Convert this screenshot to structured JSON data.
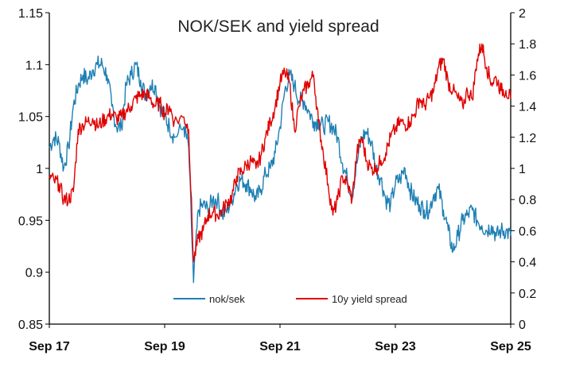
{
  "chart_data": {
    "type": "line",
    "title": "NOK/SEK and yield spread",
    "x_ticks": [
      "Sep 17",
      "Sep 19",
      "Sep 21",
      "Sep 23",
      "Sep 25"
    ],
    "x_range": [
      "Sep 17",
      "Sep 25"
    ],
    "y_left": {
      "min": 0.85,
      "max": 1.15,
      "ticks": [
        "0.85",
        "0.9",
        "0.95",
        "1",
        "1.05",
        "1.1",
        "1.15"
      ]
    },
    "y_right": {
      "min": 0,
      "max": 2,
      "ticks": [
        "0",
        "0.2",
        "0.4",
        "0.6",
        "0.8",
        "1",
        "1.2",
        "1.4",
        "1.6",
        "1.8",
        "2"
      ]
    },
    "grid": false,
    "legend_position": "bottom-center",
    "series": [
      {
        "name": "nok/sek",
        "axis": "left",
        "color": "#1F80B4",
        "points": [
          [
            "2017-09",
            1.02
          ],
          [
            "2017-10",
            1.03
          ],
          [
            "2017-11",
            1.025
          ],
          [
            "2017-12",
            1.0
          ],
          [
            "2018-01",
            1.02
          ],
          [
            "2018-02",
            1.06
          ],
          [
            "2018-03",
            1.08
          ],
          [
            "2018-04",
            1.09
          ],
          [
            "2018-05",
            1.085
          ],
          [
            "2018-06",
            1.095
          ],
          [
            "2018-07",
            1.1
          ],
          [
            "2018-08",
            1.1
          ],
          [
            "2018-09",
            1.09
          ],
          [
            "2018-10",
            1.06
          ],
          [
            "2018-11",
            1.04
          ],
          [
            "2018-12",
            1.04
          ],
          [
            "2019-01",
            1.08
          ],
          [
            "2019-02",
            1.09
          ],
          [
            "2019-03",
            1.1
          ],
          [
            "2019-04",
            1.085
          ],
          [
            "2019-05",
            1.07
          ],
          [
            "2019-06",
            1.08
          ],
          [
            "2019-07",
            1.08
          ],
          [
            "2019-08",
            1.06
          ],
          [
            "2019-09",
            1.05
          ],
          [
            "2019-10",
            1.04
          ],
          [
            "2019-11",
            1.03
          ],
          [
            "2020-01",
            1.04
          ],
          [
            "2020-02",
            1.02
          ],
          [
            "2020-03",
            0.89
          ],
          [
            "2020-04",
            0.96
          ],
          [
            "2020-05",
            0.965
          ],
          [
            "2020-06",
            0.96
          ],
          [
            "2020-07",
            0.97
          ],
          [
            "2020-08",
            0.97
          ],
          [
            "2020-09",
            0.955
          ],
          [
            "2020-10",
            0.96
          ],
          [
            "2020-11",
            0.97
          ],
          [
            "2020-12",
            0.985
          ],
          [
            "2021-01",
            0.99
          ],
          [
            "2021-02",
            0.985
          ],
          [
            "2021-03",
            0.98
          ],
          [
            "2021-04",
            0.97
          ],
          [
            "2021-05",
            0.98
          ],
          [
            "2021-06",
            0.995
          ],
          [
            "2021-07",
            1.0
          ],
          [
            "2021-08",
            1.015
          ],
          [
            "2021-09",
            1.04
          ],
          [
            "2021-10",
            1.075
          ],
          [
            "2021-11",
            1.09
          ],
          [
            "2021-12",
            1.08
          ],
          [
            "2022-01",
            1.065
          ],
          [
            "2022-02",
            1.065
          ],
          [
            "2022-03",
            1.055
          ],
          [
            "2022-04",
            1.045
          ],
          [
            "2022-05",
            1.045
          ],
          [
            "2022-06",
            1.04
          ],
          [
            "2022-07",
            1.045
          ],
          [
            "2022-08",
            1.04
          ],
          [
            "2022-09",
            1.03
          ],
          [
            "2022-10",
            1.005
          ],
          [
            "2022-11",
            0.99
          ],
          [
            "2022-12",
            0.975
          ],
          [
            "2023-01",
            1.005
          ],
          [
            "2023-02",
            1.03
          ],
          [
            "2023-03",
            1.035
          ],
          [
            "2023-04",
            1.025
          ],
          [
            "2023-05",
            1.0
          ],
          [
            "2023-06",
            0.99
          ],
          [
            "2023-07",
            0.97
          ],
          [
            "2023-08",
            0.965
          ],
          [
            "2023-09",
            0.985
          ],
          [
            "2023-10",
            0.99
          ],
          [
            "2023-11",
            1.0
          ],
          [
            "2023-12",
            0.98
          ],
          [
            "2024-01",
            0.97
          ],
          [
            "2024-02",
            0.965
          ],
          [
            "2024-03",
            0.96
          ],
          [
            "2024-04",
            0.96
          ],
          [
            "2024-05",
            0.975
          ],
          [
            "2024-06",
            0.98
          ],
          [
            "2024-07",
            0.96
          ],
          [
            "2024-08",
            0.94
          ],
          [
            "2024-09",
            0.92
          ],
          [
            "2024-10",
            0.935
          ],
          [
            "2024-11",
            0.95
          ],
          [
            "2024-12",
            0.955
          ],
          [
            "2025-01",
            0.96
          ],
          [
            "2025-02",
            0.95
          ],
          [
            "2025-03",
            0.945
          ],
          [
            "2025-04",
            0.94
          ],
          [
            "2025-05",
            0.945
          ],
          [
            "2025-06",
            0.935
          ],
          [
            "2025-07",
            0.94
          ],
          [
            "2025-08",
            0.94
          ],
          [
            "2025-09",
            0.935
          ]
        ]
      },
      {
        "name": "10y yield spread",
        "axis": "right",
        "color": "#E00000",
        "points": [
          [
            "2017-09",
            0.95
          ],
          [
            "2017-10",
            0.92
          ],
          [
            "2017-11",
            0.9
          ],
          [
            "2017-12",
            0.8
          ],
          [
            "2018-01",
            0.8
          ],
          [
            "2018-02",
            0.85
          ],
          [
            "2018-03",
            1.25
          ],
          [
            "2018-04",
            1.28
          ],
          [
            "2018-05",
            1.3
          ],
          [
            "2018-06",
            1.32
          ],
          [
            "2018-07",
            1.27
          ],
          [
            "2018-08",
            1.3
          ],
          [
            "2018-09",
            1.33
          ],
          [
            "2018-10",
            1.35
          ],
          [
            "2018-11",
            1.32
          ],
          [
            "2018-12",
            1.33
          ],
          [
            "2019-01",
            1.37
          ],
          [
            "2019-02",
            1.4
          ],
          [
            "2019-03",
            1.45
          ],
          [
            "2019-04",
            1.47
          ],
          [
            "2019-05",
            1.48
          ],
          [
            "2019-06",
            1.45
          ],
          [
            "2019-07",
            1.4
          ],
          [
            "2019-08",
            1.42
          ],
          [
            "2019-09",
            1.35
          ],
          [
            "2019-10",
            1.4
          ],
          [
            "2019-11",
            1.3
          ],
          [
            "2020-01",
            1.33
          ],
          [
            "2020-02",
            1.25
          ],
          [
            "2020-03",
            0.4
          ],
          [
            "2020-04",
            0.55
          ],
          [
            "2020-05",
            0.6
          ],
          [
            "2020-06",
            0.7
          ],
          [
            "2020-07",
            0.72
          ],
          [
            "2020-08",
            0.7
          ],
          [
            "2020-09",
            0.73
          ],
          [
            "2020-10",
            0.78
          ],
          [
            "2020-11",
            0.82
          ],
          [
            "2020-12",
            0.95
          ],
          [
            "2021-01",
            0.98
          ],
          [
            "2021-02",
            1.02
          ],
          [
            "2021-03",
            1.05
          ],
          [
            "2021-04",
            1.0
          ],
          [
            "2021-05",
            1.08
          ],
          [
            "2021-06",
            1.2
          ],
          [
            "2021-07",
            1.3
          ],
          [
            "2021-08",
            1.4
          ],
          [
            "2021-09",
            1.55
          ],
          [
            "2021-10",
            1.62
          ],
          [
            "2021-11",
            1.55
          ],
          [
            "2021-12",
            1.25
          ],
          [
            "2022-01",
            1.4
          ],
          [
            "2022-02",
            1.5
          ],
          [
            "2022-03",
            1.55
          ],
          [
            "2022-04",
            1.6
          ],
          [
            "2022-05",
            1.3
          ],
          [
            "2022-06",
            1.1
          ],
          [
            "2022-07",
            0.9
          ],
          [
            "2022-08",
            0.7
          ],
          [
            "2022-09",
            0.8
          ],
          [
            "2022-10",
            0.95
          ],
          [
            "2022-11",
            0.9
          ],
          [
            "2022-12",
            0.8
          ],
          [
            "2023-01",
            1.1
          ],
          [
            "2023-02",
            1.2
          ],
          [
            "2023-03",
            1.05
          ],
          [
            "2023-04",
            1.0
          ],
          [
            "2023-05",
            1.0
          ],
          [
            "2023-06",
            1.05
          ],
          [
            "2023-07",
            1.1
          ],
          [
            "2023-08",
            1.2
          ],
          [
            "2023-09",
            1.25
          ],
          [
            "2023-10",
            1.3
          ],
          [
            "2023-11",
            1.28
          ],
          [
            "2023-12",
            1.3
          ],
          [
            "2024-01",
            1.35
          ],
          [
            "2024-02",
            1.45
          ],
          [
            "2024-03",
            1.4
          ],
          [
            "2024-04",
            1.45
          ],
          [
            "2024-05",
            1.5
          ],
          [
            "2024-06",
            1.65
          ],
          [
            "2024-07",
            1.7
          ],
          [
            "2024-08",
            1.55
          ],
          [
            "2024-09",
            1.5
          ],
          [
            "2024-10",
            1.45
          ],
          [
            "2024-11",
            1.4
          ],
          [
            "2024-12",
            1.5
          ],
          [
            "2025-01",
            1.45
          ],
          [
            "2025-02",
            1.7
          ],
          [
            "2025-03",
            1.8
          ],
          [
            "2025-04",
            1.65
          ],
          [
            "2025-05",
            1.55
          ],
          [
            "2025-06",
            1.58
          ],
          [
            "2025-07",
            1.5
          ],
          [
            "2025-08",
            1.5
          ],
          [
            "2025-09",
            1.45
          ]
        ]
      }
    ]
  }
}
